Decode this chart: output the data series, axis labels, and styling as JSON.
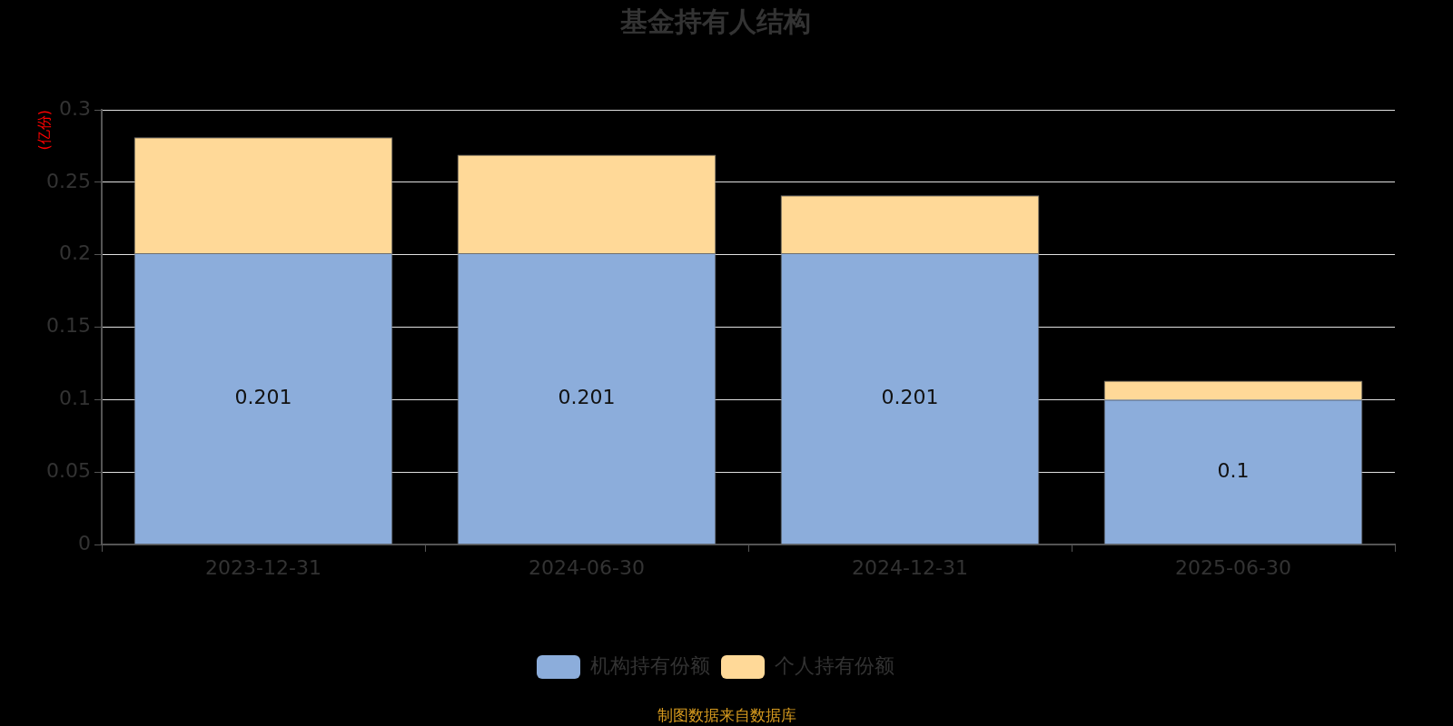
{
  "chart_data": {
    "type": "bar",
    "title": "基金持有人结构",
    "ylabel": "(亿份)",
    "categories": [
      "2023-12-31",
      "2024-06-30",
      "2024-12-31",
      "2025-06-30"
    ],
    "series": [
      {
        "name": "机构持有份额",
        "color": "#8caddb",
        "values": [
          0.201,
          0.201,
          0.201,
          0.1
        ],
        "value_labels": [
          "0.201",
          "0.201",
          "0.201",
          "0.1"
        ]
      },
      {
        "name": "个人持有份额",
        "color": "#ffd998",
        "values": [
          0.08,
          0.068,
          0.04,
          0.013
        ]
      }
    ],
    "stacked": true,
    "ylim": [
      0,
      0.3
    ],
    "yticks": [
      0,
      0.05,
      0.1,
      0.15,
      0.2,
      0.25,
      0.3
    ],
    "grid": "y",
    "legend": "bottom",
    "annotations": [
      "制图数据来自数据库"
    ]
  }
}
